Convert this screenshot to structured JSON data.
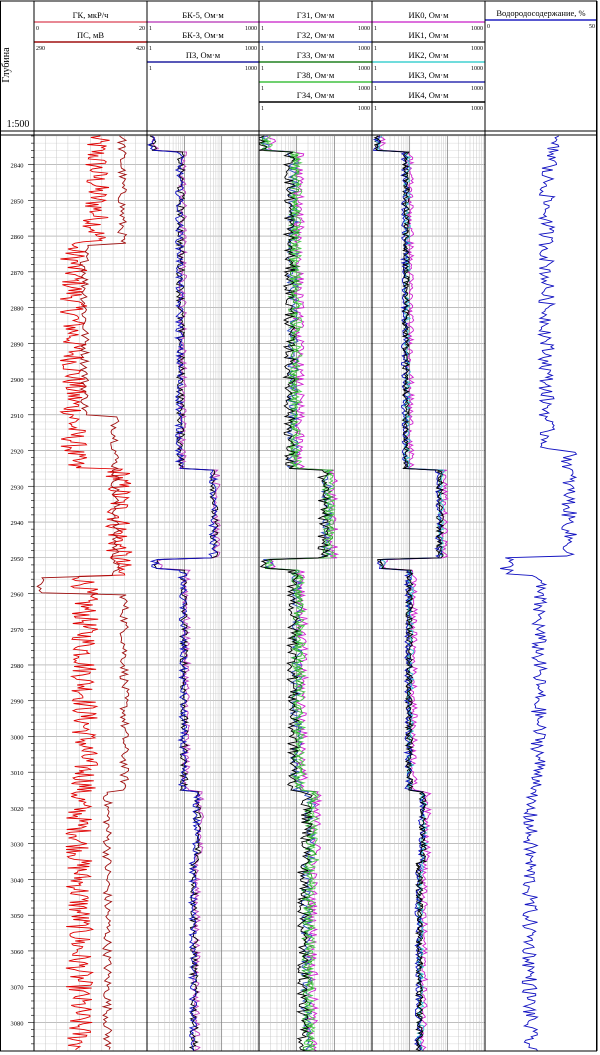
{
  "depth_header": {
    "title": "Глубина",
    "scale": "1:500"
  },
  "chart_data": {
    "type": "line",
    "depth_range": [
      2832,
      3088
    ],
    "depth_ticks": [
      2840,
      2850,
      2860,
      2870,
      2880,
      2890,
      2900,
      2910,
      2920,
      2930,
      2940,
      2950,
      2960,
      2970,
      2980,
      2990,
      3000,
      3010,
      3020,
      3030,
      3040,
      3050,
      3060,
      3070,
      3080
    ],
    "tracks": [
      {
        "id": "t1",
        "grid": "linear",
        "curves": [
          {
            "name": "ГК, мкР/ч",
            "min_label": "0",
            "max_label": "20",
            "color": "#e06070",
            "trace_color": "#e00000"
          },
          {
            "name": "ПС, мВ",
            "min_label": "290",
            "max_label": "420",
            "color": "#a01010",
            "trace_color": "#a01010"
          }
        ]
      },
      {
        "id": "t2",
        "grid": "log",
        "curves": [
          {
            "name": "БК-5, Ом·м",
            "min_label": "1",
            "max_label": "1000",
            "color": "#c050c0",
            "trace_color": "#c040c0"
          },
          {
            "name": "БК-3, Ом·м",
            "min_label": "1",
            "max_label": "1000",
            "color": "#404040",
            "trace_color": "#000000"
          },
          {
            "name": "ПЗ, Ом·м",
            "min_label": "1",
            "max_label": "1000",
            "color": "#2020a0",
            "trace_color": "#1010c0"
          }
        ]
      },
      {
        "id": "t3",
        "grid": "log",
        "curves": [
          {
            "name": "ГЗ1, Ом·м",
            "min_label": "1",
            "max_label": "1000",
            "color": "#d040d0",
            "trace_color": "#d020d0"
          },
          {
            "name": "ГЗ2, Ом·м",
            "min_label": "1",
            "max_label": "1000",
            "color": "#4050b0",
            "trace_color": "#3050c0"
          },
          {
            "name": "ГЗ3, Ом·м",
            "min_label": "1",
            "max_label": "1000",
            "color": "#208020",
            "trace_color": "#20a020"
          },
          {
            "name": "ГЗ8, Ом·м",
            "min_label": "1",
            "max_label": "1000",
            "color": "#40c040",
            "trace_color": "#50d050"
          },
          {
            "name": "ГЗ4, Ом·м",
            "min_label": "1",
            "max_label": "1000",
            "color": "#000000",
            "trace_color": "#000000"
          }
        ]
      },
      {
        "id": "t4",
        "grid": "log",
        "curves": [
          {
            "name": "ИК0, Ом·м",
            "min_label": "1",
            "max_label": "1000",
            "color": "#d040d0",
            "trace_color": "#d020d0"
          },
          {
            "name": "ИК1, Ом·м",
            "min_label": "1",
            "max_label": "1000",
            "color": "#404040",
            "trace_color": "#000000"
          },
          {
            "name": "ИК2, Ом·м",
            "min_label": "1",
            "max_label": "1000",
            "color": "#40d0d0",
            "trace_color": "#30c0d0"
          },
          {
            "name": "ИК3, Ом·м",
            "min_label": "1",
            "max_label": "1000",
            "color": "#3030b0",
            "trace_color": "#1010c0"
          },
          {
            "name": "ИК4, Ом·м",
            "min_label": "1",
            "max_label": "1000",
            "color": "#000000",
            "trace_color": "#000000"
          }
        ]
      },
      {
        "id": "t5",
        "grid": "none",
        "curves": [
          {
            "name": "Водородосодержание, %",
            "min_label": "0",
            "max_label": "50",
            "color": "#2020c0",
            "trace_color": "#1010c0"
          }
        ]
      }
    ]
  }
}
